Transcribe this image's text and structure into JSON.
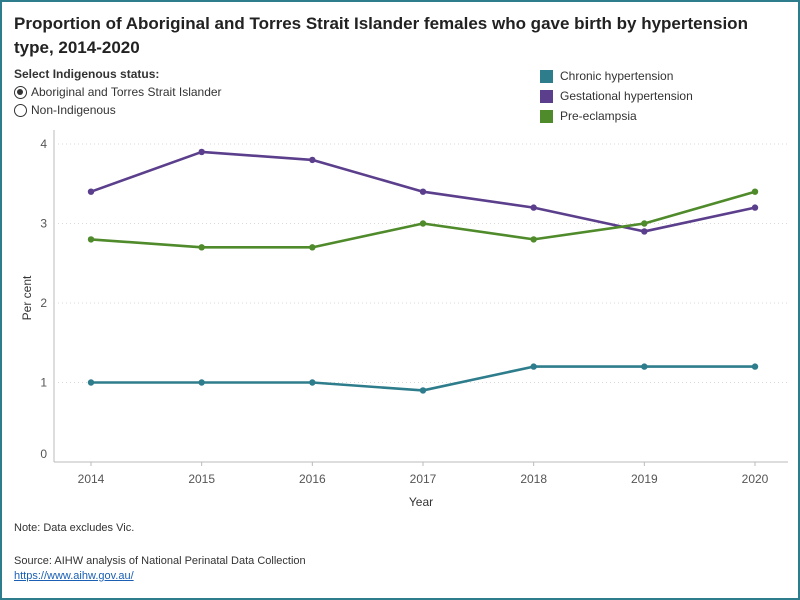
{
  "title": "Proportion of Aboriginal and Torres Strait Islander females who gave birth by hypertension type, 2014-2020",
  "filter": {
    "label": "Select Indigenous status:",
    "options": [
      {
        "label": "Aboriginal and Torres Strait Islander",
        "selected": true
      },
      {
        "label": "Non-Indigenous",
        "selected": false
      }
    ]
  },
  "colors": {
    "chronic": "#2e7d8c",
    "gestational": "#5b3f8c",
    "preeclampsia": "#4f8a2b",
    "frame": "#2e7d8c"
  },
  "chart_data": {
    "type": "line",
    "title": "Proportion of Aboriginal and Torres Strait Islander females who gave birth by hypertension type, 2014-2020",
    "xlabel": "Year",
    "ylabel": "Per cent",
    "ylim": [
      0,
      4
    ],
    "y_ticks": [
      "0",
      "1",
      "2",
      "3",
      "4"
    ],
    "categories": [
      "2014",
      "2015",
      "2016",
      "2017",
      "2018",
      "2019",
      "2020"
    ],
    "grid": true,
    "legend_position": "top-right",
    "series": [
      {
        "name": "Chronic hypertension",
        "color": "#2e7d8c",
        "values": [
          1.0,
          1.0,
          1.0,
          0.9,
          1.2,
          1.2,
          1.2
        ]
      },
      {
        "name": "Gestational hypertension",
        "color": "#5b3f8c",
        "values": [
          3.4,
          3.9,
          3.8,
          3.4,
          3.2,
          2.9,
          3.2
        ]
      },
      {
        "name": "Pre-eclampsia",
        "color": "#4f8a2b",
        "values": [
          2.8,
          2.7,
          2.7,
          3.0,
          2.8,
          3.0,
          3.4
        ]
      }
    ]
  },
  "note": "Note: Data excludes Vic.",
  "source": "Source:  AIHW analysis of National Perinatal Data Collection",
  "source_link": "https://www.aihw.gov.au/"
}
